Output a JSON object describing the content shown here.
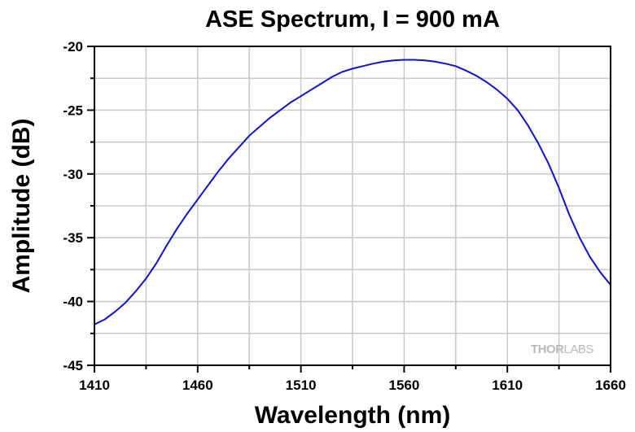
{
  "chart_data": {
    "type": "line",
    "title": "ASE Spectrum, I = 900 mA",
    "xlabel": "Wavelength (nm)",
    "ylabel": "Amplitude (dB)",
    "xlim": [
      1410,
      1660
    ],
    "ylim": [
      -45,
      -20
    ],
    "xticks": [
      1410,
      1460,
      1510,
      1560,
      1610,
      1660
    ],
    "yticks": [
      -20,
      -25,
      -30,
      -35,
      -40,
      -45
    ],
    "xtick_labels": [
      "1410",
      "1460",
      "1510",
      "1560",
      "1610",
      "1660"
    ],
    "ytick_labels": [
      "-20",
      "-25",
      "-30",
      "-35",
      "-40",
      "-45"
    ],
    "grid": true,
    "legend": "none",
    "series": [
      {
        "color": "#1010d0",
        "x": [
          1410,
          1415,
          1420,
          1425,
          1430,
          1435,
          1440,
          1445,
          1450,
          1455,
          1460,
          1465,
          1470,
          1475,
          1480,
          1485,
          1490,
          1495,
          1500,
          1505,
          1510,
          1515,
          1520,
          1525,
          1530,
          1535,
          1540,
          1545,
          1550,
          1555,
          1560,
          1565,
          1570,
          1575,
          1580,
          1585,
          1590,
          1595,
          1600,
          1605,
          1610,
          1615,
          1620,
          1625,
          1630,
          1635,
          1640,
          1645,
          1650,
          1655,
          1660
        ],
        "y": [
          -41.8,
          -41.4,
          -40.8,
          -40.1,
          -39.2,
          -38.2,
          -37.0,
          -35.6,
          -34.3,
          -33.1,
          -32.0,
          -30.9,
          -29.8,
          -28.8,
          -27.9,
          -27.0,
          -26.3,
          -25.6,
          -25.0,
          -24.4,
          -23.9,
          -23.4,
          -22.9,
          -22.4,
          -22.0,
          -21.75,
          -21.55,
          -21.35,
          -21.2,
          -21.1,
          -21.05,
          -21.05,
          -21.1,
          -21.2,
          -21.35,
          -21.55,
          -21.9,
          -22.3,
          -22.8,
          -23.4,
          -24.1,
          -25.0,
          -26.2,
          -27.6,
          -29.2,
          -31.1,
          -33.2,
          -35.0,
          -36.5,
          -37.7,
          -38.7
        ]
      }
    ]
  },
  "watermark": {
    "text_bold": "THOR",
    "text_light": "LABS"
  }
}
